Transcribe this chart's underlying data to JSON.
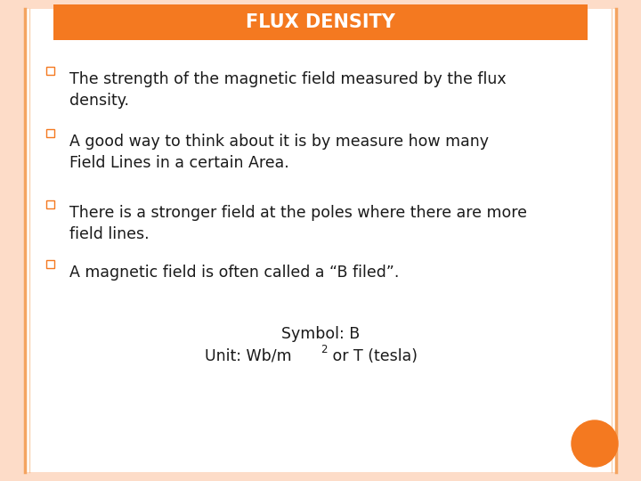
{
  "title": "FLUX DENSITY",
  "title_bg_color": "#F47920",
  "title_text_color": "#FFFFFF",
  "background_color": "#FFFFFF",
  "outer_bg_color": "#FDDCC8",
  "border_color": "#F4A460",
  "bullet_items": [
    "The strength of the magnetic field measured by the flux\ndensity.",
    "A good way to think about it is by measure how many\nField Lines in a certain Area.",
    "There is a stronger field at the poles where there are more\nfield lines.",
    "A magnetic field is often called a “B filed”."
  ],
  "bullet_color": "#F47920",
  "text_color": "#1A1A1A",
  "symbol_line": "Symbol: B",
  "unit_line_before": "Unit: Wb/m",
  "unit_superscript": "2",
  "unit_line_after": " or T (tesla)",
  "bottom_circle_color": "#F47920",
  "font_size_title": 15,
  "font_size_body": 12.5,
  "font_size_bottom": 12.5
}
